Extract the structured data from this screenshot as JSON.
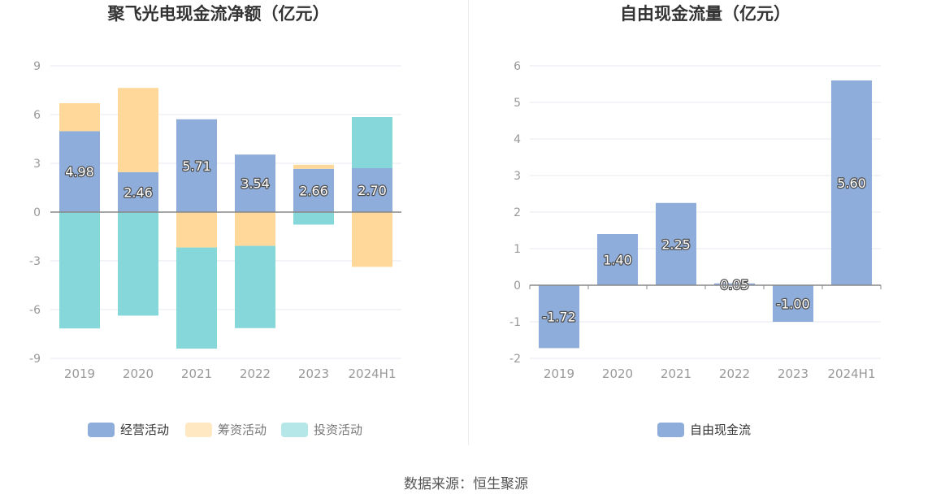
{
  "chart_data": [
    {
      "type": "bar",
      "stacked": true,
      "title": "聚飞光电现金流净额（亿元）",
      "categories": [
        "2019",
        "2020",
        "2021",
        "2022",
        "2023",
        "2024H1"
      ],
      "ylim": [
        -9,
        9
      ],
      "yticks": [
        "9",
        "6",
        "3",
        "0",
        "-3",
        "-6",
        "-9"
      ],
      "series": [
        {
          "name": "经营活动",
          "color": "#8eaddb",
          "values": [
            4.98,
            2.46,
            5.71,
            3.54,
            2.66,
            2.7
          ]
        },
        {
          "name": "筹资活动",
          "color": "#ffd89a",
          "values": [
            1.72,
            5.18,
            -2.18,
            -2.08,
            0.25,
            -3.37
          ]
        },
        {
          "name": "投资活动",
          "color": "#86d7d9",
          "values": [
            -7.16,
            -6.37,
            -6.22,
            -5.06,
            -0.77,
            3.15
          ]
        }
      ],
      "labels": [
        "4.98",
        "2.46",
        "5.71",
        "3.54",
        "2.66",
        "2.70"
      ]
    },
    {
      "type": "bar",
      "title": "自由现金流量（亿元）",
      "categories": [
        "2019",
        "2020",
        "2021",
        "2022",
        "2023",
        "2024H1"
      ],
      "ylim": [
        -2,
        6
      ],
      "yticks": [
        "6",
        "5",
        "4",
        "3",
        "2",
        "1",
        "0",
        "-1",
        "-2"
      ],
      "series": [
        {
          "name": "自由现金流",
          "color": "#8eaddb",
          "values": [
            -1.72,
            1.4,
            2.25,
            0.05,
            -1.0,
            5.6
          ]
        }
      ],
      "labels": [
        "-1.72",
        "1.40",
        "2.25",
        "0.05",
        "-1.00",
        "5.60"
      ]
    }
  ],
  "source": "数据来源：恒生聚源"
}
